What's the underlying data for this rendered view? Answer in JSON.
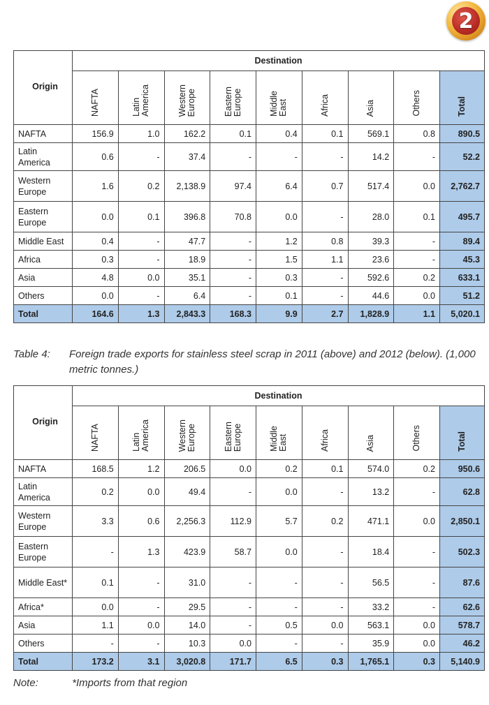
{
  "badge": {
    "number": "2"
  },
  "table1": {
    "destination_label": "Destination",
    "origin_label": "Origin",
    "columns": [
      "NAFTA",
      "Latin\nAmerica",
      "Western\nEurope",
      "Eastern\nEurope",
      "Middle\nEast",
      "Africa",
      "Asia",
      "Others",
      "Total"
    ],
    "rows": [
      {
        "origin": "NAFTA",
        "values": [
          "156.9",
          "1.0",
          "162.2",
          "0.1",
          "0.4",
          "0.1",
          "569.1",
          "0.8",
          "890.5"
        ]
      },
      {
        "origin": "Latin America",
        "values": [
          "0.6",
          "-",
          "37.4",
          "-",
          "-",
          "-",
          "14.2",
          "-",
          "52.2"
        ]
      },
      {
        "origin": "Western Europe",
        "values": [
          "1.6",
          "0.2",
          "2,138.9",
          "97.4",
          "6.4",
          "0.7",
          "517.4",
          "0.0",
          "2,762.7"
        ]
      },
      {
        "origin": "Eastern Europe",
        "values": [
          "0.0",
          "0.1",
          "396.8",
          "70.8",
          "0.0",
          "-",
          "28.0",
          "0.1",
          "495.7"
        ]
      },
      {
        "origin": "Middle East",
        "values": [
          "0.4",
          "-",
          "47.7",
          "-",
          "1.2",
          "0.8",
          "39.3",
          "-",
          "89.4"
        ]
      },
      {
        "origin": "Africa",
        "values": [
          "0.3",
          "-",
          "18.9",
          "-",
          "1.5",
          "1.1",
          "23.6",
          "-",
          "45.3"
        ]
      },
      {
        "origin": "Asia",
        "values": [
          "4.8",
          "0.0",
          "35.1",
          "-",
          "0.3",
          "-",
          "592.6",
          "0.2",
          "633.1"
        ]
      },
      {
        "origin": "Others",
        "values": [
          "0.0",
          "-",
          "6.4",
          "-",
          "0.1",
          "-",
          "44.6",
          "0.0",
          "51.2"
        ]
      },
      {
        "origin": "Total",
        "values": [
          "164.6",
          "1.3",
          "2,843.3",
          "168.3",
          "9.9",
          "2.7",
          "1,828.9",
          "1.1",
          "5,020.1"
        ]
      }
    ]
  },
  "caption": {
    "label": "Table 4:",
    "text": "Foreign trade exports for stainless steel scrap in 2011 (above) and 2012 (below). (1,000 metric tonnes.)"
  },
  "table2": {
    "destination_label": "Destination",
    "origin_label": "Origin",
    "columns": [
      "NAFTA",
      "Latin\nAmerica",
      "Western\nEurope",
      "Eastern\nEurope",
      "Middle\nEast",
      "Africa",
      "Asia",
      "Others",
      "Total"
    ],
    "rows": [
      {
        "origin": "NAFTA",
        "values": [
          "168.5",
          "1.2",
          "206.5",
          "0.0",
          "0.2",
          "0.1",
          "574.0",
          "0.2",
          "950.6"
        ]
      },
      {
        "origin": "Latin America",
        "values": [
          "0.2",
          "0.0",
          "49.4",
          "-",
          "0.0",
          "-",
          "13.2",
          "-",
          "62.8"
        ]
      },
      {
        "origin": "Western Europe",
        "values": [
          "3.3",
          "0.6",
          "2,256.3",
          "112.9",
          "5.7",
          "0.2",
          "471.1",
          "0.0",
          "2,850.1"
        ]
      },
      {
        "origin": "Eastern Europe",
        "values": [
          "-",
          "1.3",
          "423.9",
          "58.7",
          "0.0",
          "-",
          "18.4",
          "-",
          "502.3"
        ]
      },
      {
        "origin": "Middle East*",
        "values": [
          "0.1",
          "-",
          "31.0",
          "-",
          "-",
          "-",
          "56.5",
          "-",
          "87.6"
        ]
      },
      {
        "origin": "Africa*",
        "values": [
          "0.0",
          "-",
          "29.5",
          "-",
          "-",
          "-",
          "33.2",
          "-",
          "62.6"
        ]
      },
      {
        "origin": "Asia",
        "values": [
          "1.1",
          "0.0",
          "14.0",
          "-",
          "0.5",
          "0.0",
          "563.1",
          "0.0",
          "578.7"
        ]
      },
      {
        "origin": "Others",
        "values": [
          "-",
          "-",
          "10.3",
          "0.0",
          "-",
          "-",
          "35.9",
          "0.0",
          "46.2"
        ]
      },
      {
        "origin": "Total",
        "values": [
          "173.2",
          "3.1",
          "3,020.8",
          "171.7",
          "6.5",
          "0.3",
          "1,765.1",
          "0.3",
          "5,140.9"
        ]
      }
    ]
  },
  "note": {
    "label": "Note:",
    "text": "*Imports from that region"
  },
  "colors": {
    "total_fill": "#aecbe9",
    "badge_gold": "#f3b73c",
    "badge_red": "#b62b25"
  }
}
